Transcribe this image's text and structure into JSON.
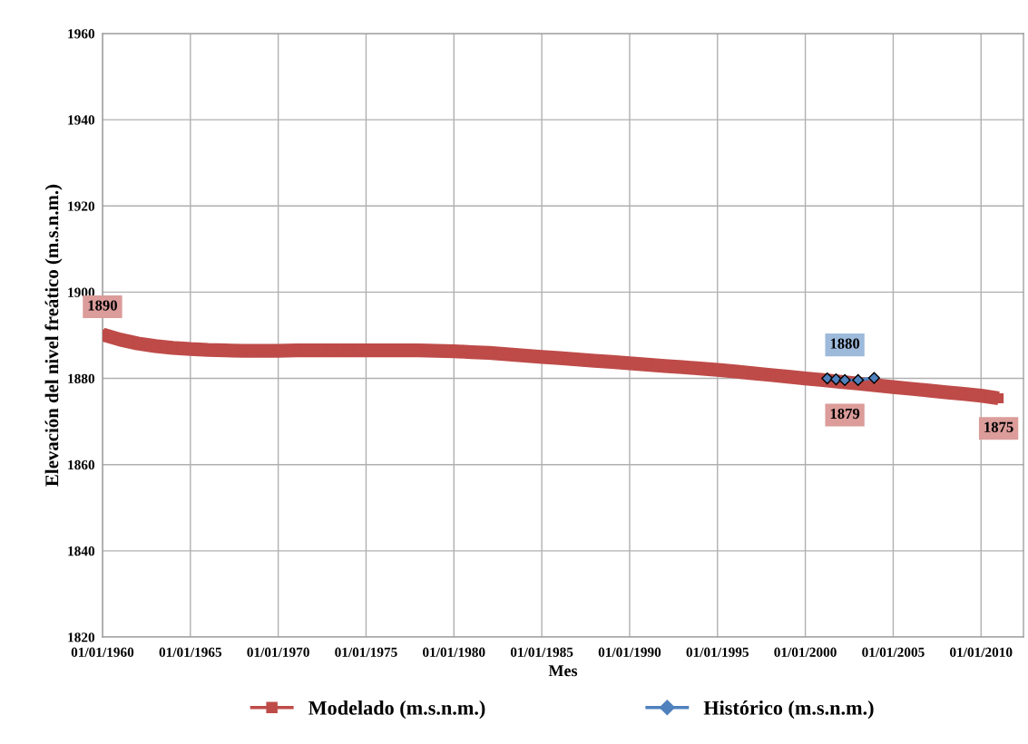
{
  "chart_data": {
    "type": "line",
    "xlabel": "Mes",
    "ylabel": "Elevación del nivel freático (m.s.n.m.)",
    "xlim": [
      "1960-01-01",
      "2012-06-01"
    ],
    "ylim": [
      1820,
      1960
    ],
    "xticks": [
      {
        "value": "1960-01-01",
        "label": "01/01/1960"
      },
      {
        "value": "1965-01-01",
        "label": "01/01/1965"
      },
      {
        "value": "1970-01-01",
        "label": "01/01/1970"
      },
      {
        "value": "1975-01-01",
        "label": "01/01/1975"
      },
      {
        "value": "1980-01-01",
        "label": "01/01/1980"
      },
      {
        "value": "1985-01-01",
        "label": "01/01/1985"
      },
      {
        "value": "1990-01-01",
        "label": "01/01/1990"
      },
      {
        "value": "1995-01-01",
        "label": "01/01/1995"
      },
      {
        "value": "2000-01-01",
        "label": "01/01/2000"
      },
      {
        "value": "2005-01-01",
        "label": "01/01/2005"
      },
      {
        "value": "2010-01-01",
        "label": "01/01/2010"
      }
    ],
    "yticks": [
      1820,
      1840,
      1860,
      1880,
      1900,
      1920,
      1940,
      1960
    ],
    "grid": true,
    "legend": "bottom",
    "series": [
      {
        "name": "Modelado (m.s.n.m.)",
        "color": "#be4b48",
        "marker": "square",
        "x": [
          "1960",
          "1961",
          "1962",
          "1963",
          "1964",
          "1965",
          "1966",
          "1967",
          "1968",
          "1969",
          "1970",
          "1971",
          "1972",
          "1973",
          "1974",
          "1975",
          "1976",
          "1977",
          "1978",
          "1979",
          "1980",
          "1981",
          "1982",
          "1983",
          "1984",
          "1985",
          "1986",
          "1987",
          "1988",
          "1989",
          "1990",
          "1991",
          "1992",
          "1993",
          "1994",
          "1995",
          "1996",
          "1997",
          "1998",
          "1999",
          "2000",
          "2001",
          "2002",
          "2003",
          "2004",
          "2005",
          "2006",
          "2007",
          "2008",
          "2009",
          "2010",
          "2011-01"
        ],
        "values": [
          1890.2,
          1889.0,
          1888.1,
          1887.5,
          1887.1,
          1886.8,
          1886.6,
          1886.5,
          1886.4,
          1886.4,
          1886.4,
          1886.5,
          1886.5,
          1886.5,
          1886.5,
          1886.5,
          1886.5,
          1886.5,
          1886.5,
          1886.4,
          1886.3,
          1886.1,
          1885.9,
          1885.6,
          1885.3,
          1885.0,
          1884.7,
          1884.4,
          1884.1,
          1883.8,
          1883.5,
          1883.2,
          1882.9,
          1882.6,
          1882.3,
          1882.0,
          1881.6,
          1881.2,
          1880.8,
          1880.4,
          1880.0,
          1879.6,
          1879.2,
          1878.8,
          1878.4,
          1878.0,
          1877.6,
          1877.2,
          1876.8,
          1876.4,
          1876.0,
          1875.4
        ]
      },
      {
        "name": "Histórico (m.s.n.m.)",
        "color": "#4f81bd",
        "marker": "diamond",
        "x": [
          "2001-04",
          "2001-10",
          "2002-04",
          "2003-01",
          "2003-12"
        ],
        "values": [
          1880.0,
          1879.8,
          1879.6,
          1879.6,
          1880.1
        ]
      }
    ],
    "annotations": [
      {
        "text": "1890",
        "x": "1960-01-01",
        "y": 1890.2
      },
      {
        "text": "1880",
        "x": "2002-04",
        "y": 1879.6
      },
      {
        "text": "1879",
        "x": "2002-04",
        "y": 1879.1
      },
      {
        "text": "1875",
        "x": "2011-01",
        "y": 1875.4
      }
    ]
  }
}
